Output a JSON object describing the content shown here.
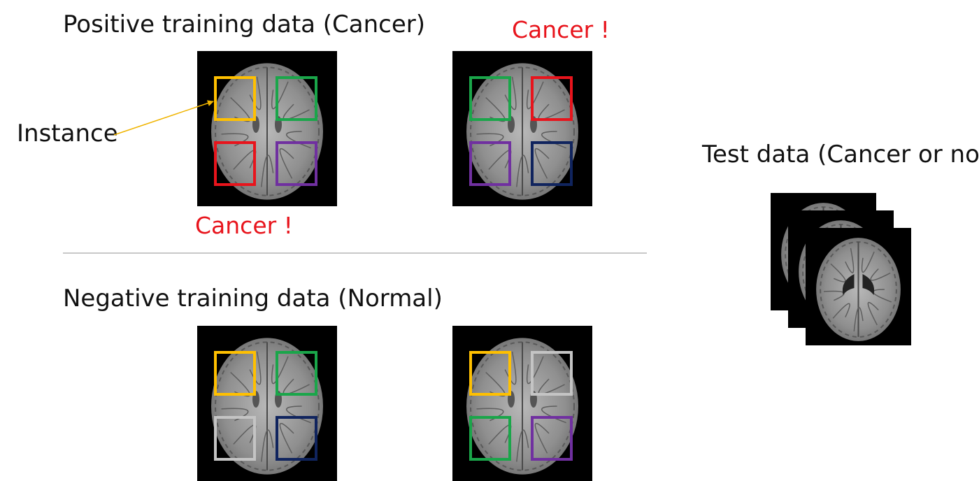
{
  "labels": {
    "positive": "Positive training data (Cancer)",
    "negative": "Negative training data (Normal)",
    "test": "Test data (Cancer or not?)",
    "instance": "Instance",
    "cancer_under_first": "Cancer !",
    "cancer_above_second": "Cancer !"
  },
  "colors": {
    "yellow": "#ffc000",
    "green": "#1aa64a",
    "red": "#e8141c",
    "purple": "#7030a0",
    "navy": "#10245e",
    "gray": "#c4c4c4",
    "arrow": "#f0b400"
  },
  "panels": {
    "pos_1": {
      "tl": "yellow",
      "tr": "green",
      "bl": "red",
      "br": "purple"
    },
    "pos_2": {
      "tl": "green",
      "tr": "red",
      "bl": "purple",
      "br": "navy"
    },
    "neg_1": {
      "tl": "yellow",
      "tr": "green",
      "bl": "gray",
      "br": "navy"
    },
    "neg_2": {
      "tl": "yellow",
      "tr": "gray",
      "bl": "green",
      "br": "purple"
    }
  },
  "icons": {
    "brain": "brain-mri-slice-icon",
    "arrow": "arrow-icon"
  }
}
